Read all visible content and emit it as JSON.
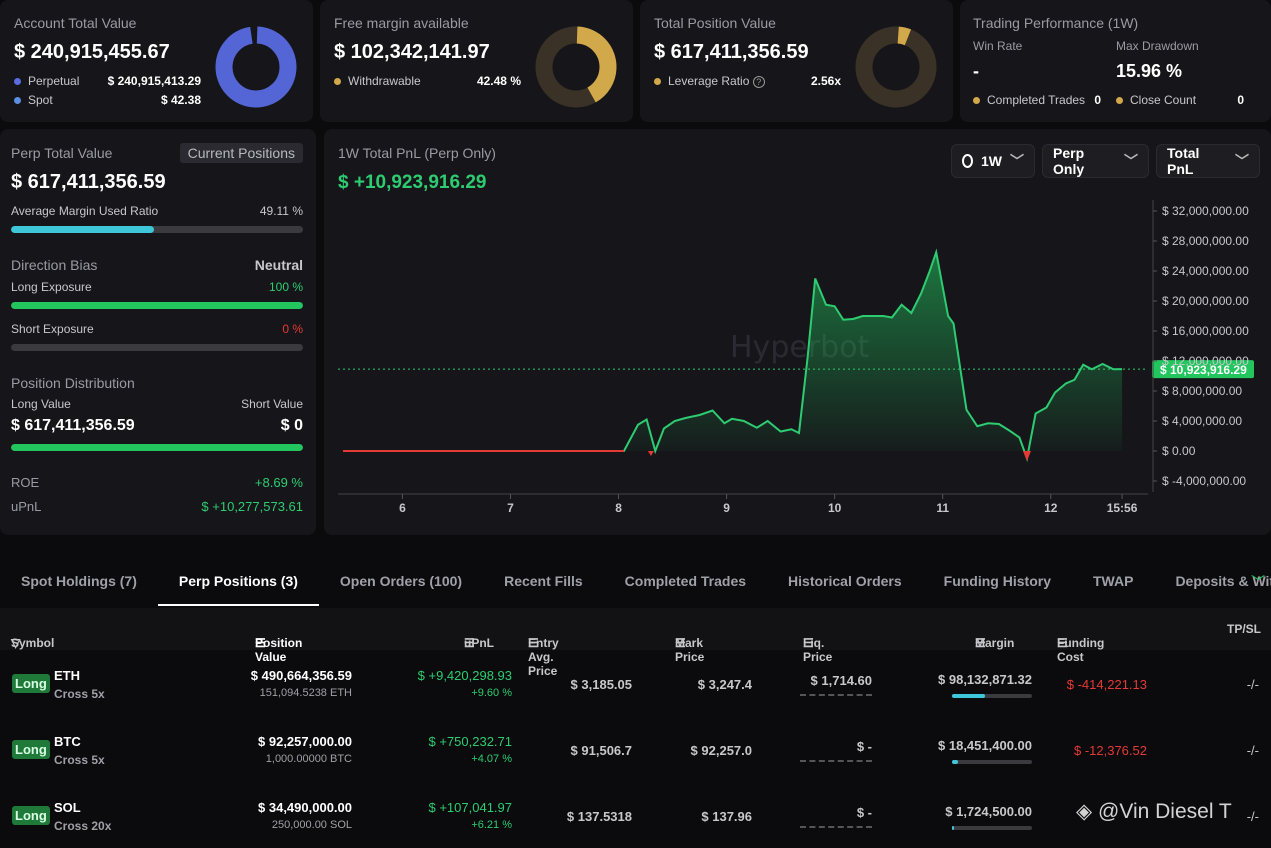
{
  "account": {
    "label": "Account Total Value",
    "value": "$ 240,915,455.67",
    "items": [
      {
        "name": "Perpetual",
        "value": "$ 240,915,413.29"
      },
      {
        "name": "Spot",
        "value": "$ 42.38"
      }
    ]
  },
  "margin": {
    "label": "Free margin available",
    "value": "$ 102,342,141.97",
    "item": {
      "name": "Withdrawable",
      "value": "42.48 %"
    }
  },
  "position": {
    "label": "Total Position Value",
    "value": "$ 617,411,356.59",
    "item": {
      "name": "Leverage Ratio",
      "value": "2.56x"
    }
  },
  "performance": {
    "label": "Trading Performance (1W)",
    "win_rate_label": "Win Rate",
    "win_rate": "-",
    "drawdown_label": "Max Drawdown",
    "drawdown": "15.96 %",
    "completed_label": "Completed Trades",
    "completed": "0",
    "close_label": "Close Count",
    "close": "0"
  },
  "perp": {
    "label": "Perp Total Value",
    "button": "Current Positions",
    "value": "$ 617,411,356.59",
    "margin_ratio_label": "Average Margin Used Ratio",
    "margin_ratio": "49.11 %",
    "margin_ratio_frac": 0.4911,
    "bias_label": "Direction Bias",
    "bias": "Neutral",
    "long_label": "Long Exposure",
    "long": "100 %",
    "long_frac": 1,
    "short_label": "Short Exposure",
    "short": "0 %",
    "short_frac": 0,
    "dist_label": "Position Distribution",
    "long_value_label": "Long Value",
    "short_value_label": "Short Value",
    "long_value": "$ 617,411,356.59",
    "short_value": "$ 0",
    "roe_label": "ROE",
    "roe": "+8.69 %",
    "upnl_label": "uPnL",
    "upnl": "$ +10,277,573.61"
  },
  "pnl": {
    "title": "1W Total PnL (Perp Only)",
    "value": "$ +10,923,916.29",
    "period": "1W",
    "filter": "Perp Only",
    "metric": "Total PnL",
    "watermark": "Hyperbot"
  },
  "chart_data": {
    "type": "area",
    "title": "1W Total PnL (Perp Only)",
    "current": 10923916.29,
    "current_label": "$ 10,923,916.29",
    "yticks": [
      "$ 32,000,000.00",
      "$ 28,000,000.00",
      "$ 24,000,000.00",
      "$ 20,000,000.00",
      "$ 16,000,000.00",
      "$ 12,000,000.00",
      "$ 8,000,000.00",
      "$ 4,000,000.00",
      "$ 0.00",
      "$ -4,000,000.00"
    ],
    "ylim": [
      -4000000,
      32000000
    ],
    "xticks": [
      {
        "label": "6",
        "t": 6
      },
      {
        "label": "7",
        "t": 7
      },
      {
        "label": "8",
        "t": 8
      },
      {
        "label": "9",
        "t": 9
      },
      {
        "label": "10",
        "t": 10
      },
      {
        "label": "11",
        "t": 11
      },
      {
        "label": "12",
        "t": 12
      },
      {
        "label": "15:56",
        "t": 12.66
      }
    ],
    "xlim": [
      5.45,
      12.9
    ],
    "points": [
      [
        5.45,
        0
      ],
      [
        8.05,
        0
      ],
      [
        8.18,
        3500000
      ],
      [
        8.26,
        4200000
      ],
      [
        8.34,
        0
      ],
      [
        8.42,
        3000000
      ],
      [
        8.52,
        4000000
      ],
      [
        8.62,
        4400000
      ],
      [
        8.75,
        4800000
      ],
      [
        8.87,
        5400000
      ],
      [
        8.98,
        3700000
      ],
      [
        9.05,
        4300000
      ],
      [
        9.16,
        4000000
      ],
      [
        9.28,
        3100000
      ],
      [
        9.38,
        4000000
      ],
      [
        9.5,
        2600000
      ],
      [
        9.6,
        2900000
      ],
      [
        9.67,
        2400000
      ],
      [
        9.75,
        12500000
      ],
      [
        9.82,
        23000000
      ],
      [
        9.92,
        19500000
      ],
      [
        10.0,
        19300000
      ],
      [
        10.08,
        17500000
      ],
      [
        10.17,
        17600000
      ],
      [
        10.26,
        18000000
      ],
      [
        10.35,
        18000000
      ],
      [
        10.45,
        18000000
      ],
      [
        10.53,
        17800000
      ],
      [
        10.62,
        19500000
      ],
      [
        10.71,
        18400000
      ],
      [
        10.8,
        21000000
      ],
      [
        10.88,
        24000000
      ],
      [
        10.94,
        26500000
      ],
      [
        11.05,
        18000000
      ],
      [
        11.1,
        17000000
      ],
      [
        11.22,
        5500000
      ],
      [
        11.32,
        3300000
      ],
      [
        11.42,
        3700000
      ],
      [
        11.52,
        3600000
      ],
      [
        11.62,
        2700000
      ],
      [
        11.71,
        1800000
      ],
      [
        11.78,
        -1000000
      ],
      [
        11.86,
        5000000
      ],
      [
        11.96,
        5800000
      ],
      [
        12.04,
        7800000
      ],
      [
        12.14,
        9000000
      ],
      [
        12.22,
        9500000
      ],
      [
        12.3,
        11500000
      ],
      [
        12.38,
        10900000
      ],
      [
        12.48,
        11600000
      ],
      [
        12.58,
        10900000
      ],
      [
        12.66,
        10923916
      ]
    ]
  },
  "tabs": [
    "Spot Holdings (7)",
    "Perp Positions (3)",
    "Open Orders (100)",
    "Recent Fills",
    "Completed Trades",
    "Historical Orders",
    "Funding History",
    "TWAP",
    "Deposits & Withd"
  ],
  "active_tab": 1,
  "table": {
    "headers": [
      "Symbol",
      "Position Value",
      "uPnL",
      "Entry Avg. Price",
      "Mark Price",
      "Liq. Price",
      "Margin",
      "Funding Cost",
      "TP/SL"
    ],
    "rows": [
      {
        "side": "Long",
        "symbol": "ETH",
        "mode": "Cross 5x",
        "value": "$ 490,664,356.59",
        "size": "151,094.5238 ETH",
        "upnl": "$ +9,420,298.93",
        "upnl_pct": "+9.60 %",
        "entry": "$ 3,185.05",
        "mark": "$ 3,247.4",
        "liq": "$ 1,714.60",
        "margin": "$ 98,132,871.32",
        "margin_frac": 0.41,
        "funding": "$ -414,221.13",
        "tpsl": "-/-"
      },
      {
        "side": "Long",
        "symbol": "BTC",
        "mode": "Cross 5x",
        "value": "$ 92,257,000.00",
        "size": "1,000.00000 BTC",
        "upnl": "$ +750,232.71",
        "upnl_pct": "+4.07 %",
        "entry": "$ 91,506.7",
        "mark": "$ 92,257.0",
        "liq": "$ -",
        "margin": "$ 18,451,400.00",
        "margin_frac": 0.08,
        "funding": "$ -12,376.52",
        "tpsl": "-/-"
      },
      {
        "side": "Long",
        "symbol": "SOL",
        "mode": "Cross 20x",
        "value": "$ 34,490,000.00",
        "size": "250,000.00 SOL",
        "upnl": "$ +107,041.97",
        "upnl_pct": "+6.21 %",
        "entry": "$ 137.5318",
        "mark": "$ 137.96",
        "liq": "$ -",
        "margin": "$ 1,724,500.00",
        "margin_frac": 0.02,
        "funding": "",
        "tpsl": "-/-"
      }
    ]
  },
  "watermark": "@Vin Diesel T"
}
